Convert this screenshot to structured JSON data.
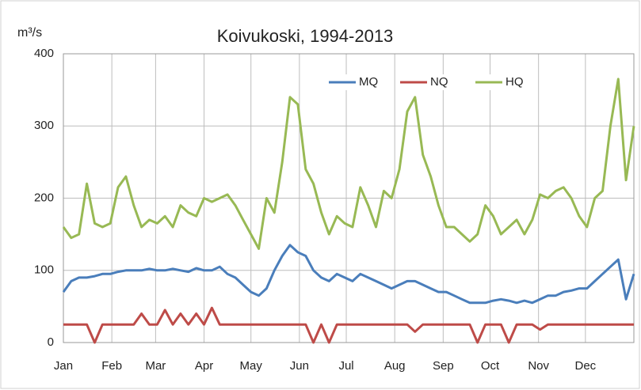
{
  "chart_data": {
    "type": "line",
    "title": "Koivukoski, 1994-2013",
    "y_label": "m³/s",
    "x": [
      1,
      6,
      11,
      16,
      21,
      26,
      31,
      36,
      41,
      46,
      51,
      56,
      61,
      66,
      71,
      76,
      81,
      86,
      91,
      96,
      101,
      106,
      111,
      116,
      121,
      126,
      131,
      136,
      141,
      146,
      151,
      156,
      161,
      166,
      171,
      176,
      181,
      186,
      191,
      196,
      201,
      206,
      211,
      216,
      221,
      226,
      231,
      236,
      241,
      246,
      251,
      256,
      261,
      266,
      271,
      276,
      281,
      286,
      291,
      296,
      301,
      306,
      311,
      316,
      321,
      326,
      331,
      336,
      341,
      346,
      351,
      356,
      361,
      366
    ],
    "xlim": [
      1,
      366
    ],
    "xticks": [
      {
        "value": 1,
        "label": "Jan"
      },
      {
        "value": 32,
        "label": "Feb"
      },
      {
        "value": 60,
        "label": "Mar"
      },
      {
        "value": 91,
        "label": "Apr"
      },
      {
        "value": 121,
        "label": "May"
      },
      {
        "value": 152,
        "label": "Jun"
      },
      {
        "value": 182,
        "label": "Jul"
      },
      {
        "value": 213,
        "label": "Aug"
      },
      {
        "value": 244,
        "label": "Sep"
      },
      {
        "value": 274,
        "label": "Oct"
      },
      {
        "value": 305,
        "label": "Nov"
      },
      {
        "value": 335,
        "label": "Dec"
      }
    ],
    "ylim": [
      0,
      400
    ],
    "yticks": [
      0,
      100,
      200,
      300,
      400
    ],
    "grid": true,
    "legend": "top-right",
    "series": [
      {
        "name": "MQ",
        "color": "#4a7ebb",
        "values": [
          70,
          85,
          90,
          90,
          92,
          95,
          95,
          98,
          100,
          100,
          100,
          102,
          100,
          100,
          102,
          100,
          98,
          103,
          100,
          100,
          105,
          95,
          90,
          80,
          70,
          65,
          75,
          100,
          120,
          135,
          125,
          120,
          100,
          90,
          85,
          95,
          90,
          85,
          95,
          90,
          85,
          80,
          75,
          80,
          85,
          85,
          80,
          75,
          70,
          70,
          65,
          60,
          55,
          55,
          55,
          58,
          60,
          58,
          55,
          58,
          55,
          60,
          65,
          65,
          70,
          72,
          75,
          75,
          85,
          95,
          105,
          115,
          60,
          95
        ]
      },
      {
        "name": "NQ",
        "color": "#be4b48",
        "values": [
          25,
          25,
          25,
          25,
          0,
          25,
          25,
          25,
          25,
          25,
          40,
          25,
          25,
          45,
          25,
          40,
          25,
          40,
          25,
          48,
          25,
          25,
          25,
          25,
          25,
          25,
          25,
          25,
          25,
          25,
          25,
          25,
          0,
          25,
          0,
          25,
          25,
          25,
          25,
          25,
          25,
          25,
          25,
          25,
          25,
          15,
          25,
          25,
          25,
          25,
          25,
          25,
          25,
          0,
          25,
          25,
          25,
          0,
          25,
          25,
          25,
          18,
          25,
          25,
          25,
          25,
          25,
          25,
          25,
          25,
          25,
          25,
          25,
          25
        ]
      },
      {
        "name": "HQ",
        "color": "#98b954",
        "values": [
          160,
          145,
          150,
          220,
          165,
          160,
          165,
          215,
          230,
          190,
          160,
          170,
          165,
          175,
          160,
          190,
          180,
          175,
          200,
          195,
          200,
          205,
          190,
          170,
          150,
          130,
          200,
          180,
          250,
          340,
          330,
          240,
          220,
          180,
          150,
          175,
          165,
          160,
          215,
          190,
          160,
          210,
          200,
          240,
          320,
          340,
          260,
          230,
          190,
          160,
          160,
          150,
          140,
          150,
          190,
          175,
          150,
          160,
          170,
          150,
          170,
          205,
          200,
          210,
          215,
          200,
          175,
          160,
          200,
          210,
          300,
          365,
          225,
          300
        ]
      }
    ]
  }
}
